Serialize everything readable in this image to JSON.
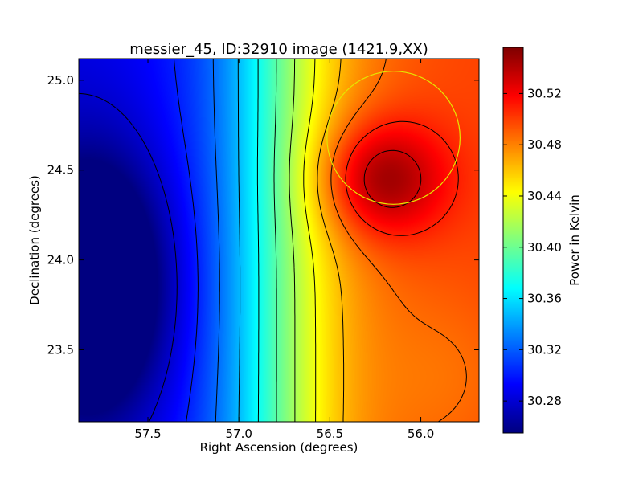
{
  "chart_data": {
    "type": "heatmap",
    "title": "messier_45, ID:32910 image (1421.9,XX)",
    "xlabel": "Right Ascension (degrees)",
    "ylabel": "Declination (degrees)",
    "xlim": [
      57.88,
      55.68
    ],
    "ylim": [
      23.1,
      25.12
    ],
    "x_ticks": [
      57.5,
      57.0,
      56.5,
      56.0
    ],
    "x_tick_labels": [
      "57.5",
      "57.0",
      "56.5",
      "56.0"
    ],
    "y_ticks": [
      23.5,
      24.0,
      24.5,
      25.0
    ],
    "y_tick_labels": [
      "23.5",
      "24.0",
      "24.5",
      "25.0"
    ],
    "colormap": "jet",
    "colorbar": {
      "label": "Power in Kelvin",
      "min": 30.255,
      "max": 30.556,
      "ticks": [
        30.28,
        30.32,
        30.36,
        30.4,
        30.44,
        30.48,
        30.52
      ],
      "tick_labels": [
        "30.28",
        "30.32",
        "30.36",
        "30.40",
        "30.44",
        "30.48",
        "30.52"
      ]
    },
    "field": {
      "minimum": {
        "ra": 57.8,
        "dec": 23.85,
        "value": 30.255
      },
      "maximum": {
        "ra": 56.22,
        "dec": 24.45,
        "value": 30.555
      }
    },
    "contours": true,
    "contour_levels": 12,
    "beam_circle": {
      "ra": 56.15,
      "dec": 24.68,
      "radius_deg": 0.37,
      "color": "#e5e500"
    }
  }
}
